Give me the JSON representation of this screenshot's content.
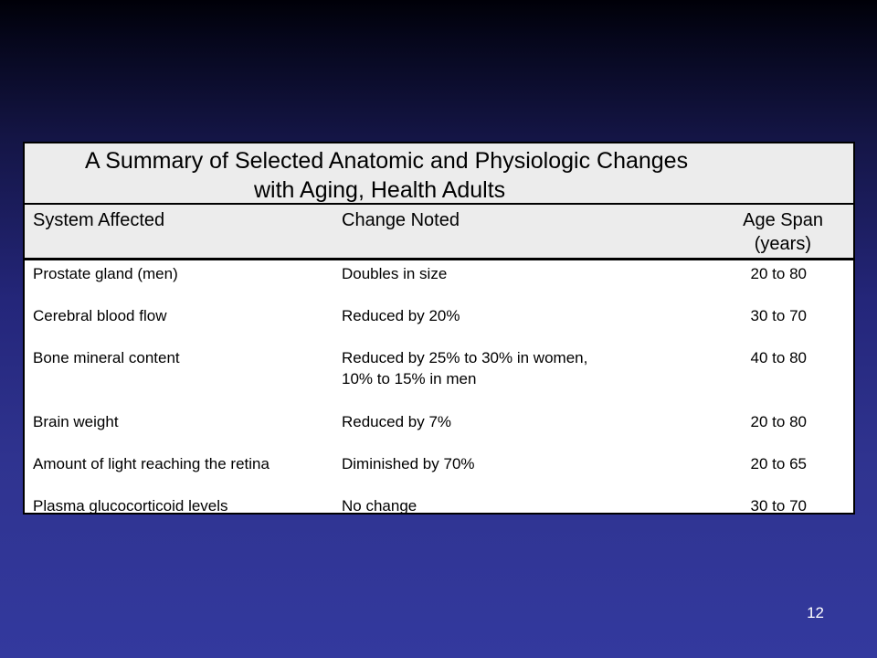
{
  "table": {
    "title_line_1": "A Summary of Selected Anatomic and Physiologic Changes",
    "title_line_2": "with Aging, Health Adults",
    "headers": {
      "system": "System Affected",
      "change": "Change Noted",
      "age_line_1": "Age Span",
      "age_line_2": "(years)"
    },
    "rows": [
      {
        "system": "Prostate gland (men)",
        "change_1": "Doubles in size",
        "change_2": "",
        "age": "20 to 80"
      },
      {
        "system": "Cerebral blood flow",
        "change_1": "Reduced by 20%",
        "change_2": "",
        "age": "30 to 70"
      },
      {
        "system": "Bone mineral content",
        "change_1": "Reduced by 25% to 30% in women,",
        "change_2": "10% to 15% in men",
        "age": "40 to 80"
      },
      {
        "system": "Brain weight",
        "change_1": "Reduced by 7%",
        "change_2": "",
        "age": "20 to 80"
      },
      {
        "system": "Amount of light reaching the retina",
        "change_1": "Diminished by 70%",
        "change_2": "",
        "age": "20 to 65"
      },
      {
        "system": "Plasma glucocorticoid levels",
        "change_1": "No change",
        "change_2": "",
        "age": "30 to 70"
      }
    ]
  },
  "page_number": "12"
}
